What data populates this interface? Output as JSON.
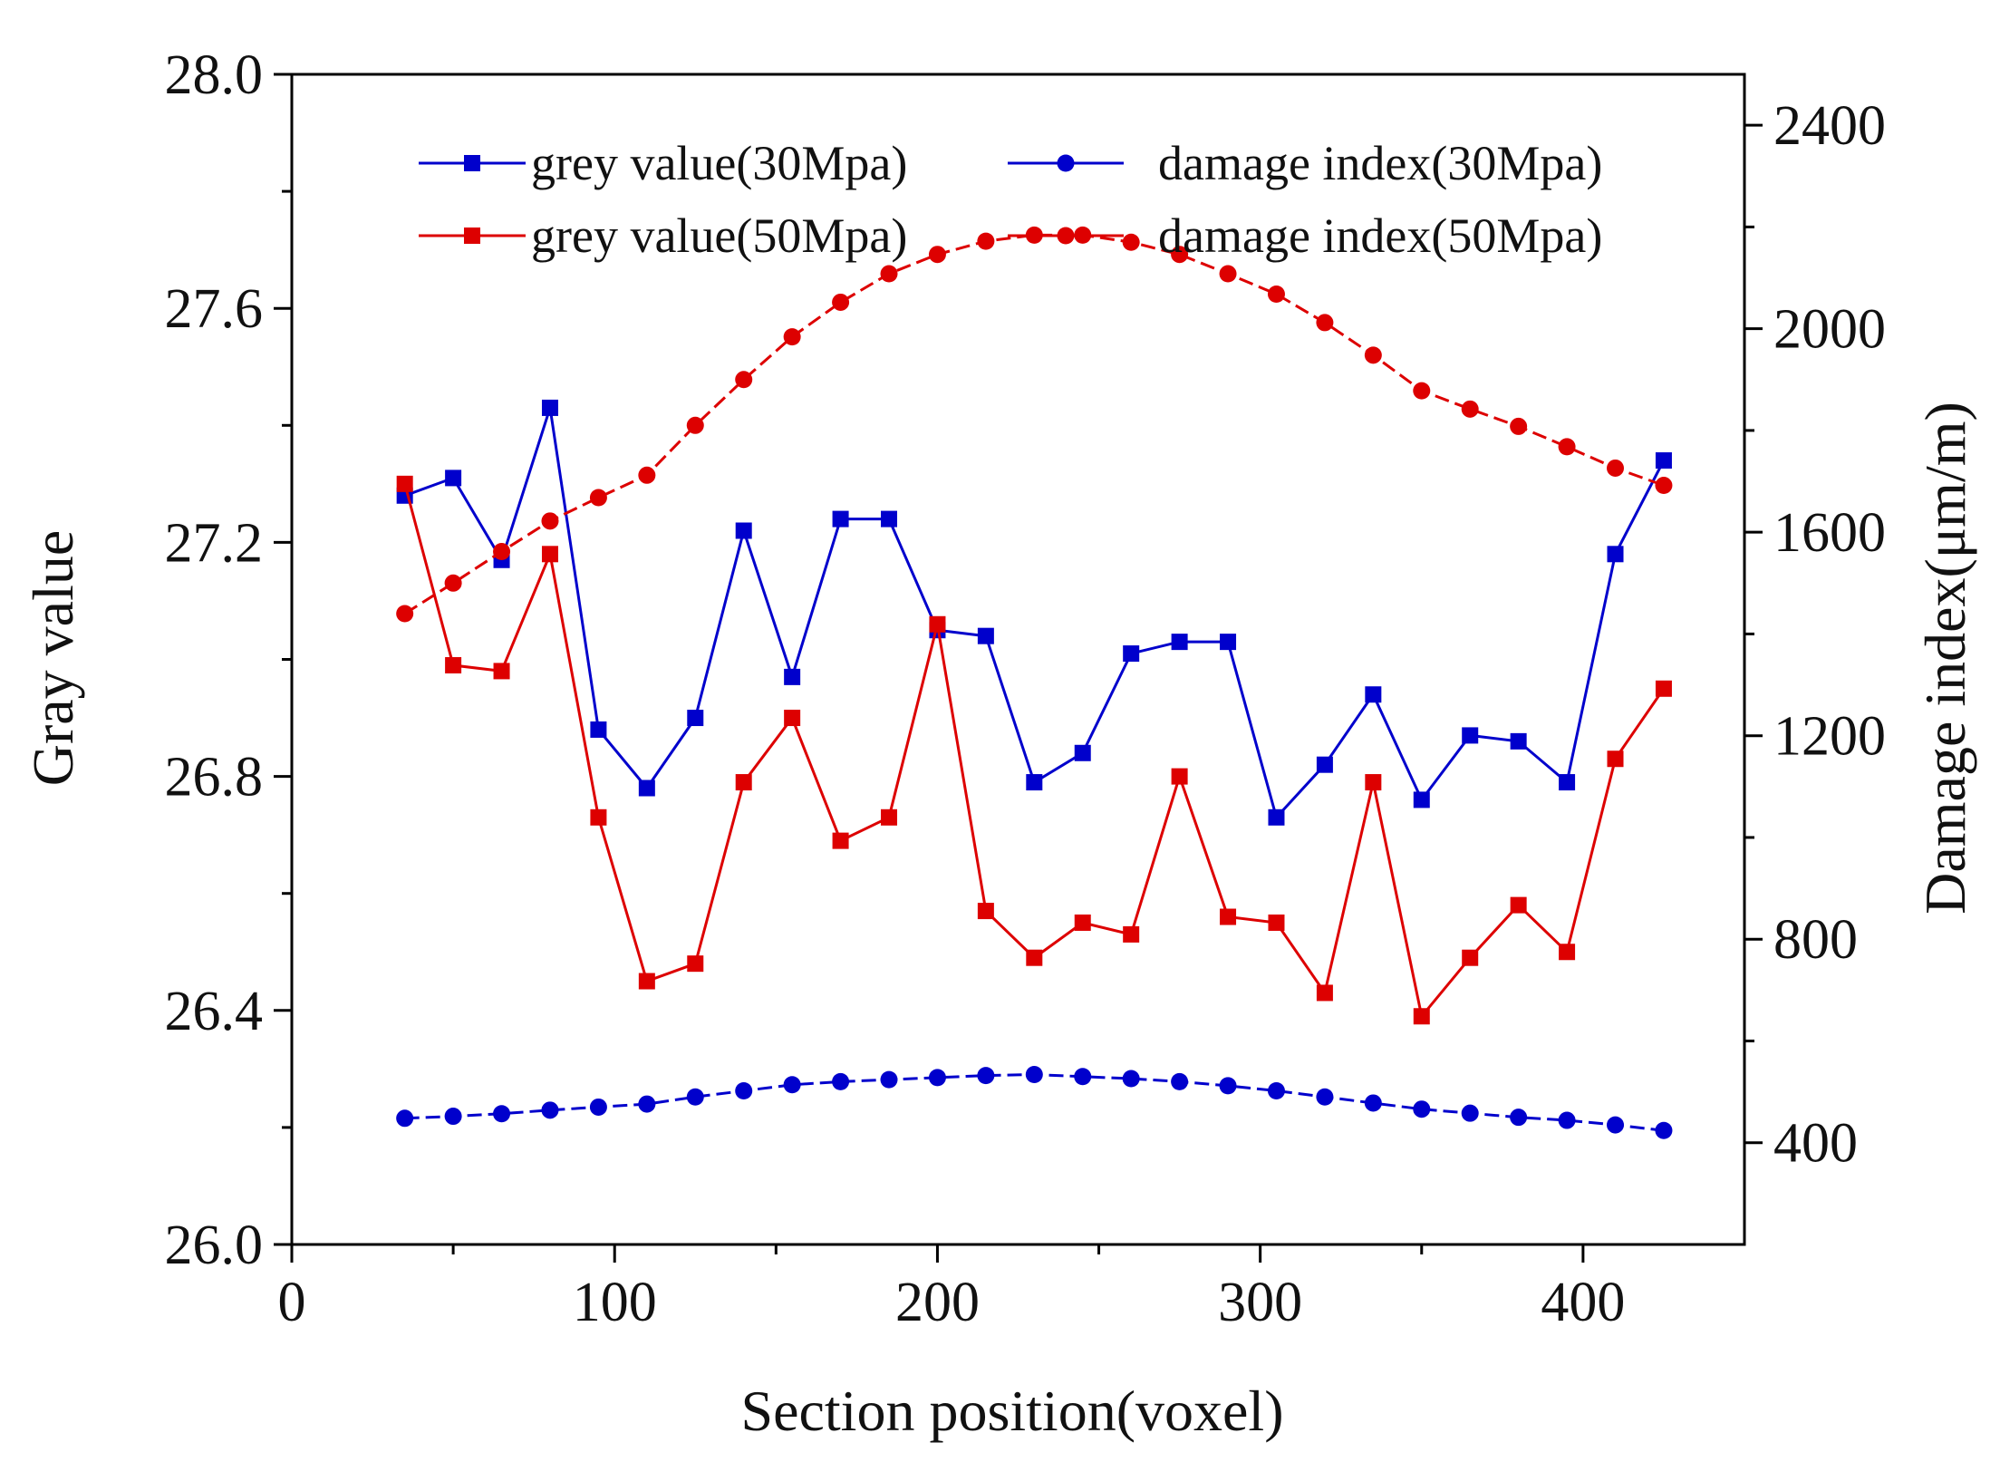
{
  "chart_data": {
    "type": "line",
    "xlabel": "Section position(voxel)",
    "ylabel_left": "Gray value",
    "ylabel_right": "Damage index(μm/m)",
    "xlim": [
      0,
      450
    ],
    "ylim_left": [
      26.0,
      28.0
    ],
    "ylim_right": [
      200,
      2500
    ],
    "x_ticks": [
      0,
      100,
      200,
      300,
      400
    ],
    "x_tick_labels": [
      "0",
      "100",
      "200",
      "300",
      "400"
    ],
    "y_left_ticks": [
      26.0,
      26.4,
      26.8,
      27.2,
      27.6,
      28.0
    ],
    "y_left_tick_labels": [
      "26.0",
      "26.4",
      "26.8",
      "27.2",
      "27.6",
      "28.0"
    ],
    "y_right_ticks": [
      400,
      800,
      1200,
      1600,
      2000,
      2400
    ],
    "y_right_tick_labels": [
      "400",
      "800",
      "1200",
      "1600",
      "2000",
      "2400"
    ],
    "grid": false,
    "legend_position": "top",
    "x": [
      35,
      50,
      65,
      80,
      95,
      110,
      125,
      140,
      155,
      170,
      185,
      200,
      215,
      230,
      245,
      260,
      275,
      290,
      305,
      320,
      335,
      350,
      365,
      380,
      395,
      410,
      425
    ],
    "series": [
      {
        "name": "grey value(30Mpa)",
        "axis": "left",
        "marker": "square",
        "color": "#0000cc",
        "values": [
          27.28,
          27.31,
          27.17,
          27.43,
          26.88,
          26.78,
          26.9,
          27.22,
          26.97,
          27.24,
          27.24,
          27.05,
          27.04,
          26.79,
          26.84,
          27.01,
          27.03,
          27.03,
          26.73,
          26.82,
          26.94,
          26.76,
          26.87,
          26.86,
          26.79,
          27.18,
          27.34
        ]
      },
      {
        "name": "grey value(50Mpa)",
        "axis": "left",
        "marker": "square",
        "color": "#dd0000",
        "values": [
          27.3,
          26.99,
          26.98,
          27.18,
          26.73,
          26.45,
          26.48,
          26.79,
          26.9,
          26.69,
          26.73,
          27.06,
          26.57,
          26.49,
          26.55,
          26.53,
          26.8,
          26.56,
          26.55,
          26.43,
          26.79,
          26.39,
          26.49,
          26.58,
          26.5,
          26.83,
          26.95
        ]
      },
      {
        "name": "damage index(30Mpa)",
        "axis": "right",
        "marker": "circle",
        "color": "#0000cc",
        "values": [
          448,
          452,
          457,
          464,
          470,
          476,
          490,
          502,
          514,
          520,
          524,
          528,
          532,
          534,
          530,
          526,
          520,
          512,
          502,
          490,
          478,
          466,
          458,
          450,
          444,
          435,
          424
        ]
      },
      {
        "name": "damage index(50Mpa)",
        "axis": "right",
        "marker": "circle",
        "color": "#dd0000",
        "values": [
          1440,
          1500,
          1562,
          1622,
          1668,
          1712,
          1810,
          1900,
          1984,
          2052,
          2108,
          2146,
          2172,
          2184,
          2184,
          2170,
          2146,
          2108,
          2068,
          2012,
          1948,
          1878,
          1842,
          1808,
          1768,
          1726,
          1692
        ]
      }
    ]
  }
}
